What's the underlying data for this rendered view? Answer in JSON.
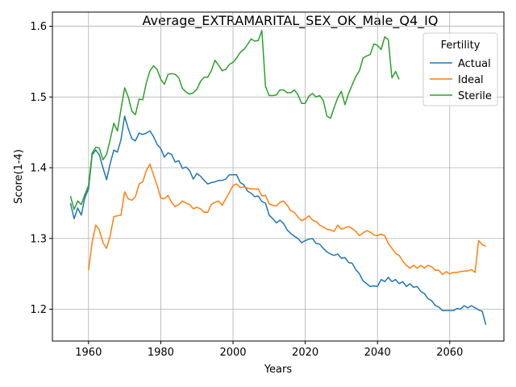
{
  "chart_data": {
    "type": "line",
    "title": "Average_EXTRAMARITAL_SEX_OK_Male_Q4_IQ",
    "xlabel": "Years",
    "ylabel": "Score(1-4)",
    "xlim": [
      1950,
      2075
    ],
    "ylim": [
      1.155,
      1.62
    ],
    "xticks": [
      1960,
      1980,
      2000,
      2020,
      2040,
      2060
    ],
    "yticks": [
      1.2,
      1.3,
      1.4,
      1.5,
      1.6
    ],
    "grid": true,
    "legend": {
      "title": "Fertility",
      "placement": "top-right"
    },
    "series": [
      {
        "name": "Actual",
        "color": "#1f77b4",
        "x": [
          1955,
          1956,
          1957,
          1958,
          1959,
          1960,
          1961,
          1962,
          1963,
          1964,
          1965,
          1966,
          1967,
          1968,
          1969,
          1970,
          1971,
          1972,
          1973,
          1974,
          1975,
          1976,
          1977,
          1978,
          1979,
          1980,
          1981,
          1982,
          1983,
          1984,
          1985,
          1986,
          1987,
          1988,
          1989,
          1990,
          1991,
          1992,
          1993,
          1994,
          1995,
          1996,
          1997,
          1998,
          1999,
          2000,
          2001,
          2002,
          2003,
          2004,
          2005,
          2006,
          2007,
          2008,
          2009,
          2010,
          2011,
          2012,
          2013,
          2014,
          2015,
          2016,
          2017,
          2018,
          2019,
          2020,
          2021,
          2022,
          2023,
          2024,
          2025,
          2026,
          2027,
          2028,
          2029,
          2030,
          2031,
          2032,
          2033,
          2034,
          2035,
          2036,
          2037,
          2038,
          2039,
          2040,
          2041,
          2042,
          2043,
          2044,
          2045,
          2046,
          2047,
          2048,
          2049,
          2050,
          2051,
          2052,
          2053,
          2054,
          2055,
          2056,
          2057,
          2058,
          2059,
          2060,
          2061,
          2062,
          2063,
          2064,
          2065,
          2066,
          2067,
          2068,
          2069,
          2070
        ],
        "values": [
          1.35,
          1.328,
          1.343,
          1.333,
          1.358,
          1.37,
          1.418,
          1.425,
          1.418,
          1.4,
          1.383,
          1.406,
          1.425,
          1.422,
          1.44,
          1.473,
          1.455,
          1.441,
          1.438,
          1.449,
          1.447,
          1.449,
          1.452,
          1.444,
          1.433,
          1.427,
          1.415,
          1.421,
          1.419,
          1.408,
          1.41,
          1.399,
          1.401,
          1.396,
          1.384,
          1.392,
          1.388,
          1.382,
          1.377,
          1.379,
          1.38,
          1.382,
          1.382,
          1.384,
          1.39,
          1.39,
          1.39,
          1.379,
          1.376,
          1.367,
          1.364,
          1.359,
          1.36,
          1.352,
          1.35,
          1.333,
          1.328,
          1.322,
          1.326,
          1.321,
          1.312,
          1.307,
          1.303,
          1.3,
          1.294,
          1.297,
          1.299,
          1.3,
          1.293,
          1.292,
          1.286,
          1.281,
          1.278,
          1.276,
          1.278,
          1.272,
          1.273,
          1.266,
          1.265,
          1.256,
          1.25,
          1.24,
          1.236,
          1.232,
          1.233,
          1.232,
          1.242,
          1.239,
          1.245,
          1.239,
          1.242,
          1.236,
          1.239,
          1.232,
          1.236,
          1.231,
          1.232,
          1.225,
          1.222,
          1.215,
          1.212,
          1.205,
          1.203,
          1.198,
          1.198,
          1.198,
          1.198,
          1.201,
          1.2,
          1.205,
          1.202,
          1.205,
          1.202,
          1.199,
          1.197,
          1.178
        ]
      },
      {
        "name": "Ideal",
        "color": "#ff7f0e",
        "x": [
          1960,
          1961,
          1962,
          1963,
          1964,
          1965,
          1966,
          1967,
          1968,
          1969,
          1970,
          1971,
          1972,
          1973,
          1974,
          1975,
          1976,
          1977,
          1978,
          1979,
          1980,
          1981,
          1982,
          1983,
          1984,
          1985,
          1986,
          1987,
          1988,
          1989,
          1990,
          1991,
          1992,
          1993,
          1994,
          1995,
          1996,
          1997,
          1998,
          1999,
          2000,
          2001,
          2002,
          2003,
          2004,
          2005,
          2006,
          2007,
          2008,
          2009,
          2010,
          2011,
          2012,
          2013,
          2014,
          2015,
          2016,
          2017,
          2018,
          2019,
          2020,
          2021,
          2022,
          2023,
          2024,
          2025,
          2026,
          2027,
          2028,
          2029,
          2030,
          2031,
          2032,
          2033,
          2034,
          2035,
          2036,
          2037,
          2038,
          2039,
          2040,
          2041,
          2042,
          2043,
          2044,
          2045,
          2046,
          2047,
          2048,
          2049,
          2050,
          2051,
          2052,
          2053,
          2054,
          2055,
          2056,
          2057,
          2058,
          2059,
          2060,
          2061,
          2062,
          2063,
          2064,
          2065,
          2066,
          2067,
          2068,
          2069,
          2070
        ],
        "values": [
          1.255,
          1.295,
          1.319,
          1.312,
          1.294,
          1.286,
          1.304,
          1.331,
          1.332,
          1.333,
          1.366,
          1.356,
          1.354,
          1.359,
          1.377,
          1.38,
          1.396,
          1.405,
          1.39,
          1.375,
          1.357,
          1.356,
          1.361,
          1.351,
          1.345,
          1.348,
          1.353,
          1.35,
          1.348,
          1.342,
          1.344,
          1.342,
          1.337,
          1.337,
          1.348,
          1.351,
          1.353,
          1.347,
          1.356,
          1.365,
          1.375,
          1.377,
          1.372,
          1.373,
          1.371,
          1.37,
          1.37,
          1.37,
          1.36,
          1.361,
          1.349,
          1.347,
          1.346,
          1.351,
          1.353,
          1.347,
          1.339,
          1.337,
          1.33,
          1.325,
          1.328,
          1.332,
          1.326,
          1.324,
          1.319,
          1.316,
          1.313,
          1.312,
          1.31,
          1.319,
          1.313,
          1.315,
          1.317,
          1.314,
          1.31,
          1.304,
          1.308,
          1.311,
          1.309,
          1.305,
          1.304,
          1.306,
          1.304,
          1.293,
          1.286,
          1.279,
          1.276,
          1.268,
          1.262,
          1.258,
          1.262,
          1.258,
          1.262,
          1.258,
          1.262,
          1.26,
          1.255,
          1.255,
          1.249,
          1.253,
          1.25,
          1.252,
          1.252,
          1.253,
          1.254,
          1.254,
          1.256,
          1.252,
          1.297,
          1.291,
          1.289
        ]
      },
      {
        "name": "Sterile",
        "color": "#2ca02c",
        "x": [
          1955,
          1956,
          1957,
          1958,
          1959,
          1960,
          1961,
          1962,
          1963,
          1964,
          1965,
          1966,
          1967,
          1968,
          1969,
          1970,
          1971,
          1972,
          1973,
          1974,
          1975,
          1976,
          1977,
          1978,
          1979,
          1980,
          1981,
          1982,
          1983,
          1984,
          1985,
          1986,
          1987,
          1988,
          1989,
          1990,
          1991,
          1992,
          1993,
          1994,
          1995,
          1996,
          1997,
          1998,
          1999,
          2000,
          2001,
          2002,
          2003,
          2004,
          2005,
          2006,
          2007,
          2008,
          2009,
          2010,
          2011,
          2012,
          2013,
          2014,
          2015,
          2016,
          2017,
          2018,
          2019,
          2020,
          2021,
          2022,
          2023,
          2024,
          2025,
          2026,
          2027,
          2028,
          2029,
          2030,
          2031,
          2032,
          2033,
          2034,
          2035,
          2036,
          2037,
          2038,
          2039,
          2040,
          2041,
          2042,
          2043,
          2044,
          2045,
          2046
        ],
        "values": [
          1.36,
          1.341,
          1.353,
          1.348,
          1.362,
          1.375,
          1.421,
          1.429,
          1.428,
          1.411,
          1.419,
          1.44,
          1.463,
          1.452,
          1.483,
          1.513,
          1.5,
          1.48,
          1.475,
          1.497,
          1.496,
          1.52,
          1.537,
          1.544,
          1.539,
          1.525,
          1.518,
          1.532,
          1.533,
          1.532,
          1.527,
          1.512,
          1.507,
          1.504,
          1.506,
          1.511,
          1.522,
          1.528,
          1.528,
          1.537,
          1.552,
          1.545,
          1.537,
          1.539,
          1.546,
          1.549,
          1.555,
          1.563,
          1.567,
          1.574,
          1.582,
          1.579,
          1.58,
          1.594,
          1.515,
          1.502,
          1.502,
          1.503,
          1.51,
          1.51,
          1.506,
          1.506,
          1.51,
          1.503,
          1.491,
          1.491,
          1.501,
          1.505,
          1.5,
          1.502,
          1.495,
          1.473,
          1.47,
          1.485,
          1.499,
          1.508,
          1.489,
          1.505,
          1.517,
          1.529,
          1.537,
          1.555,
          1.558,
          1.56,
          1.575,
          1.573,
          1.567,
          1.585,
          1.581,
          1.527,
          1.536,
          1.525
        ]
      }
    ]
  }
}
